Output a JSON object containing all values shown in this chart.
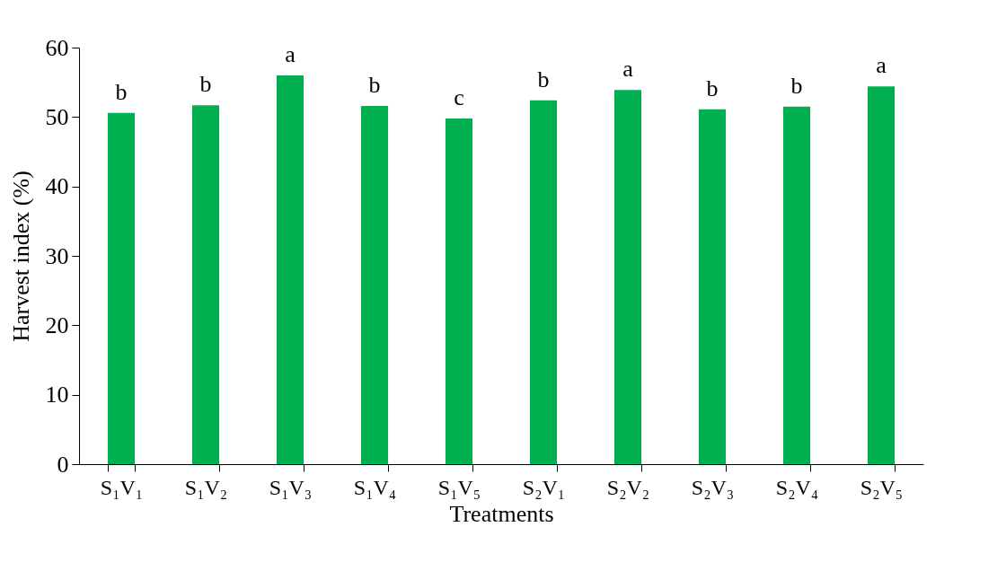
{
  "chart_data": {
    "type": "bar",
    "xlabel": "Treatments",
    "ylabel": "Harvest index (%)",
    "categories": [
      "S₁V₁",
      "S₁V₂",
      "S₁V₃",
      "S₁V₄",
      "S₁V₅",
      "S₂V₁",
      "S₂V₂",
      "S₂V₃",
      "S₂V₄",
      "S₂V₅"
    ],
    "values": [
      50.6,
      51.7,
      56.0,
      51.6,
      49.8,
      52.4,
      53.9,
      51.1,
      51.5,
      54.4
    ],
    "color": "#00b050",
    "ylim": [
      0,
      60
    ],
    "yticks": [
      0,
      10,
      20,
      30,
      40,
      50,
      60
    ],
    "grid": false,
    "annotations": [
      {
        "text": "b",
        "x": "S₁V₁",
        "y": 50.6
      },
      {
        "text": "b",
        "x": "S₁V₂",
        "y": 51.7
      },
      {
        "text": "a",
        "x": "S₁V₃",
        "y": 56.0
      },
      {
        "text": "b",
        "x": "S₁V₄",
        "y": 51.6
      },
      {
        "text": "c",
        "x": "S₁V₅",
        "y": 49.8
      },
      {
        "text": "b",
        "x": "S₂V₁",
        "y": 52.4
      },
      {
        "text": "a",
        "x": "S₂V₂",
        "y": 53.9
      },
      {
        "text": "b",
        "x": "S₂V₃",
        "y": 51.1
      },
      {
        "text": "b",
        "x": "S₂V₄",
        "y": 51.5
      },
      {
        "text": "a",
        "x": "S₂V₅",
        "y": 54.4
      }
    ]
  }
}
